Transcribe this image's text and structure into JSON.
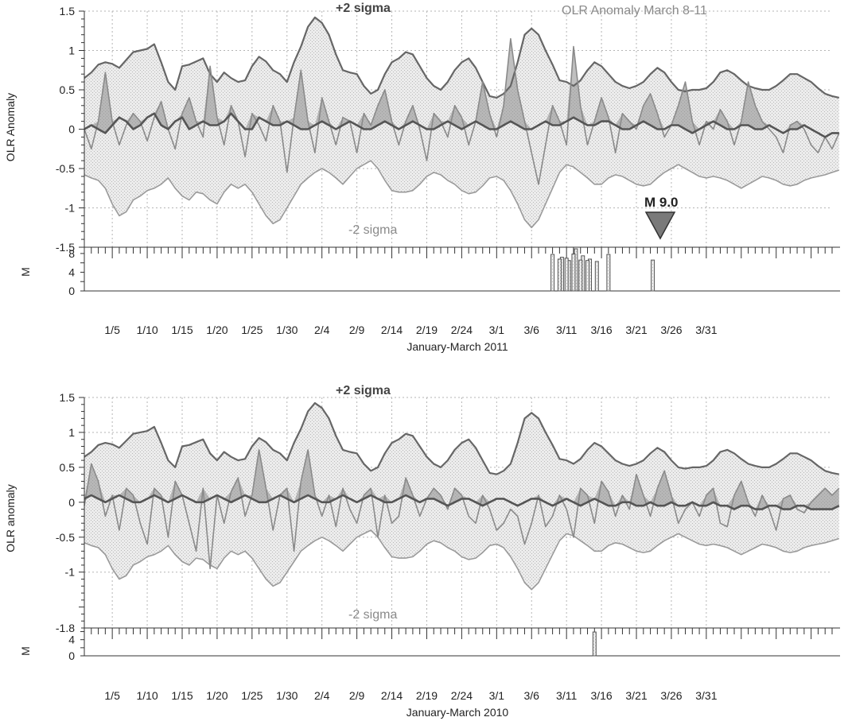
{
  "chart_data": [
    {
      "type": "line",
      "xlabel": "January-March 2011",
      "ylabel": "OLR Anomaly",
      "ylim": [
        -1.5,
        1.5
      ],
      "y_ticks": [
        "1.5",
        "1",
        "0.5",
        "0",
        "-0.5",
        "-1",
        "-1.5"
      ],
      "x_tick_labels": [
        "1/5",
        "1/10",
        "1/15",
        "1/20",
        "1/25",
        "1/30",
        "2/4",
        "2/9",
        "2/14",
        "2/19",
        "2/24",
        "3/1",
        "3/6",
        "3/11",
        "3/16",
        "3/21",
        "3/26",
        "3/31"
      ],
      "annotations": {
        "sigma_high": "+2 sigma",
        "sigma_low": "-2 sigma",
        "note": "OLR Anomaly March 8-11",
        "quake": "M 9.0"
      },
      "quake_day": 70,
      "series": [
        {
          "values": [
            0.65,
            0.72,
            0.82,
            0.85,
            0.83,
            0.78,
            0.88,
            0.98,
            1.0,
            1.02,
            1.08,
            0.85,
            0.6,
            0.5,
            0.8,
            0.82,
            0.86,
            0.9,
            0.7,
            0.6,
            0.72,
            0.65,
            0.6,
            0.62,
            0.8,
            0.92,
            0.86,
            0.75,
            0.7,
            0.6,
            0.85,
            1.05,
            1.3,
            1.42,
            1.35,
            1.2,
            0.95,
            0.75,
            0.72,
            0.7,
            0.55,
            0.45,
            0.5,
            0.7,
            0.85,
            0.9,
            0.98,
            0.95,
            0.8,
            0.65,
            0.55,
            0.5,
            0.6,
            0.75,
            0.85,
            0.9,
            0.78,
            0.6,
            0.42,
            0.4,
            0.45,
            0.55,
            0.85,
            1.2,
            1.28,
            1.2,
            1.0,
            0.82,
            0.62,
            0.6,
            0.55,
            0.62,
            0.75,
            0.85,
            0.8,
            0.7,
            0.6,
            0.55,
            0.52,
            0.55,
            0.6,
            0.7,
            0.78,
            0.72,
            0.6,
            0.5,
            0.48,
            0.5,
            0.5,
            0.52,
            0.6,
            0.72,
            0.75,
            0.7,
            0.62,
            0.55,
            0.52,
            0.5,
            0.5,
            0.55,
            0.62,
            0.7,
            0.7,
            0.65,
            0.6,
            0.52,
            0.45,
            0.42,
            0.4
          ]
        },
        {
          "values": [
            -0.58,
            -0.62,
            -0.65,
            -0.75,
            -0.95,
            -1.1,
            -1.05,
            -0.9,
            -0.85,
            -0.78,
            -0.75,
            -0.7,
            -0.62,
            -0.75,
            -0.85,
            -0.9,
            -0.8,
            -0.82,
            -0.9,
            -0.95,
            -0.8,
            -0.7,
            -0.75,
            -0.7,
            -0.8,
            -0.95,
            -1.1,
            -1.2,
            -1.15,
            -1.0,
            -0.85,
            -0.7,
            -0.62,
            -0.55,
            -0.5,
            -0.55,
            -0.62,
            -0.7,
            -0.6,
            -0.5,
            -0.45,
            -0.4,
            -0.5,
            -0.65,
            -0.78,
            -0.8,
            -0.8,
            -0.78,
            -0.7,
            -0.6,
            -0.55,
            -0.58,
            -0.65,
            -0.7,
            -0.78,
            -0.82,
            -0.8,
            -0.72,
            -0.62,
            -0.6,
            -0.65,
            -0.78,
            -0.95,
            -1.15,
            -1.25,
            -1.15,
            -0.95,
            -0.75,
            -0.55,
            -0.45,
            -0.48,
            -0.55,
            -0.62,
            -0.7,
            -0.7,
            -0.62,
            -0.58,
            -0.6,
            -0.65,
            -0.7,
            -0.72,
            -0.7,
            -0.62,
            -0.55,
            -0.5,
            -0.45,
            -0.5,
            -0.55,
            -0.6,
            -0.62,
            -0.6,
            -0.62,
            -0.65,
            -0.7,
            -0.75,
            -0.7,
            -0.65,
            -0.6,
            -0.62,
            -0.65,
            -0.7,
            -0.72,
            -0.7,
            -0.65,
            -0.62,
            -0.6,
            -0.58,
            -0.55,
            -0.52
          ]
        },
        {
          "values": [
            0.0,
            0.05,
            0.0,
            -0.05,
            0.05,
            0.15,
            0.1,
            0.0,
            0.05,
            0.15,
            0.2,
            0.05,
            0.0,
            0.1,
            0.15,
            0.0,
            0.05,
            0.1,
            0.05,
            0.05,
            0.1,
            0.2,
            0.1,
            0.0,
            0.0,
            0.15,
            0.1,
            0.05,
            0.05,
            0.1,
            0.05,
            0.0,
            0.0,
            0.05,
            0.1,
            0.05,
            0.0,
            0.05,
            0.1,
            0.05,
            0.0,
            0.0,
            0.05,
            0.1,
            0.05,
            0.0,
            0.05,
            0.1,
            0.05,
            0.0,
            0.0,
            0.05,
            0.1,
            0.05,
            0.0,
            0.05,
            0.1,
            0.05,
            0.0,
            0.0,
            0.05,
            0.1,
            0.05,
            0.0,
            0.0,
            0.05,
            0.1,
            0.05,
            0.05,
            0.1,
            0.15,
            0.1,
            0.05,
            0.05,
            0.1,
            0.1,
            0.05,
            0.0,
            0.0,
            0.05,
            0.1,
            0.05,
            0.0,
            0.0,
            0.05,
            0.05,
            0.0,
            -0.05,
            0.0,
            0.05,
            0.1,
            0.05,
            0.0,
            0.0,
            0.05,
            0.05,
            0.0,
            0.0,
            0.05,
            0.0,
            -0.05,
            0.0,
            0.0,
            0.05,
            0.0,
            -0.05,
            -0.1,
            -0.05,
            -0.05
          ]
        },
        {
          "values": [
            0.0,
            -0.25,
            0.1,
            0.72,
            0.1,
            -0.2,
            0.05,
            0.2,
            0.1,
            -0.15,
            0.15,
            0.35,
            0.0,
            -0.25,
            0.2,
            0.4,
            0.1,
            -0.1,
            0.8,
            0.15,
            -0.2,
            0.3,
            0.1,
            -0.35,
            0.2,
            0.05,
            -0.15,
            0.3,
            0.1,
            -0.55,
            0.15,
            0.75,
            0.1,
            -0.3,
            0.4,
            0.1,
            -0.2,
            0.15,
            0.1,
            -0.3,
            0.2,
            0.05,
            0.3,
            0.5,
            0.1,
            -0.2,
            0.1,
            0.3,
            0.0,
            -0.4,
            0.2,
            0.1,
            -0.1,
            0.3,
            0.15,
            -0.2,
            0.1,
            0.6,
            0.2,
            -0.1,
            0.3,
            1.15,
            0.5,
            0.1,
            -0.3,
            -0.7,
            -0.2,
            0.3,
            0.1,
            -0.2,
            1.05,
            0.3,
            -0.2,
            0.1,
            0.4,
            0.15,
            -0.3,
            0.2,
            0.1,
            0.0,
            0.3,
            0.45,
            0.2,
            -0.1,
            0.05,
            0.3,
            0.6,
            0.1,
            -0.2,
            0.1,
            0.0,
            0.25,
            0.1,
            -0.2,
            0.1,
            0.6,
            0.3,
            0.1,
            0.0,
            -0.1,
            -0.3,
            0.05,
            0.1,
            0.0,
            -0.2,
            -0.3,
            -0.1,
            -0.25,
            -0.05
          ]
        }
      ]
    },
    {
      "type": "bar",
      "ylabel": "M",
      "y_ticks": [
        "8",
        "4",
        "0"
      ],
      "ylim": [
        0,
        9
      ],
      "x": [
        67,
        68,
        68,
        69,
        69,
        70,
        70,
        71,
        71,
        72,
        72,
        73,
        75,
        81
      ],
      "values": [
        7.8,
        7.2,
        6.8,
        6.5,
        7.0,
        9.0,
        7.9,
        7.5,
        6.6,
        6.8,
        6.5,
        6.3,
        7.8,
        6.6
      ]
    },
    {
      "type": "line",
      "xlabel": "January-March 2010",
      "ylabel": "OLR anomaly",
      "ylim": [
        -1.8,
        1.5
      ],
      "y_ticks": [
        "1.5",
        "1",
        "0.5",
        "0",
        "-0.5",
        "-1",
        "-1.8"
      ],
      "x_tick_labels": [
        "1/5",
        "1/10",
        "1/15",
        "1/20",
        "1/25",
        "1/30",
        "2/4",
        "2/9",
        "2/14",
        "2/19",
        "2/24",
        "3/1",
        "3/6",
        "3/11",
        "3/16",
        "3/21",
        "3/26",
        "3/31"
      ],
      "annotations": {
        "sigma_high": "+2 sigma",
        "sigma_low": "-2 sigma"
      },
      "series": [
        {
          "values": [
            0.65,
            0.72,
            0.82,
            0.85,
            0.83,
            0.78,
            0.88,
            0.98,
            1.0,
            1.02,
            1.08,
            0.85,
            0.6,
            0.5,
            0.8,
            0.82,
            0.86,
            0.9,
            0.7,
            0.6,
            0.72,
            0.65,
            0.6,
            0.62,
            0.8,
            0.92,
            0.86,
            0.75,
            0.7,
            0.6,
            0.85,
            1.05,
            1.3,
            1.42,
            1.35,
            1.2,
            0.95,
            0.75,
            0.72,
            0.7,
            0.55,
            0.45,
            0.5,
            0.7,
            0.85,
            0.9,
            0.98,
            0.95,
            0.8,
            0.65,
            0.55,
            0.5,
            0.6,
            0.75,
            0.85,
            0.9,
            0.78,
            0.6,
            0.42,
            0.4,
            0.45,
            0.55,
            0.85,
            1.2,
            1.28,
            1.2,
            1.0,
            0.82,
            0.62,
            0.6,
            0.55,
            0.62,
            0.75,
            0.85,
            0.8,
            0.7,
            0.6,
            0.55,
            0.52,
            0.55,
            0.6,
            0.7,
            0.78,
            0.72,
            0.6,
            0.5,
            0.48,
            0.5,
            0.5,
            0.52,
            0.6,
            0.72,
            0.75,
            0.7,
            0.62,
            0.55,
            0.52,
            0.5,
            0.5,
            0.55,
            0.62,
            0.7,
            0.7,
            0.65,
            0.6,
            0.52,
            0.45,
            0.42,
            0.4
          ]
        },
        {
          "values": [
            -0.58,
            -0.62,
            -0.65,
            -0.75,
            -0.95,
            -1.1,
            -1.05,
            -0.9,
            -0.85,
            -0.78,
            -0.75,
            -0.7,
            -0.62,
            -0.75,
            -0.85,
            -0.9,
            -0.8,
            -0.82,
            -0.9,
            -0.95,
            -0.8,
            -0.7,
            -0.75,
            -0.7,
            -0.8,
            -0.95,
            -1.1,
            -1.2,
            -1.15,
            -1.0,
            -0.85,
            -0.7,
            -0.62,
            -0.55,
            -0.5,
            -0.55,
            -0.62,
            -0.7,
            -0.6,
            -0.5,
            -0.45,
            -0.4,
            -0.5,
            -0.65,
            -0.78,
            -0.8,
            -0.8,
            -0.78,
            -0.7,
            -0.6,
            -0.55,
            -0.58,
            -0.65,
            -0.7,
            -0.78,
            -0.82,
            -0.8,
            -0.72,
            -0.62,
            -0.6,
            -0.65,
            -0.78,
            -0.95,
            -1.15,
            -1.25,
            -1.15,
            -0.95,
            -0.75,
            -0.55,
            -0.45,
            -0.48,
            -0.55,
            -0.62,
            -0.7,
            -0.7,
            -0.62,
            -0.58,
            -0.6,
            -0.65,
            -0.7,
            -0.72,
            -0.7,
            -0.62,
            -0.55,
            -0.5,
            -0.45,
            -0.5,
            -0.55,
            -0.6,
            -0.62,
            -0.6,
            -0.62,
            -0.65,
            -0.7,
            -0.75,
            -0.7,
            -0.65,
            -0.6,
            -0.62,
            -0.65,
            -0.7,
            -0.72,
            -0.7,
            -0.65,
            -0.62,
            -0.6,
            -0.58,
            -0.55,
            -0.52
          ]
        },
        {
          "values": [
            0.05,
            0.1,
            0.05,
            0.0,
            0.05,
            0.1,
            0.05,
            0.0,
            0.0,
            0.05,
            0.1,
            0.05,
            0.0,
            0.05,
            0.1,
            0.05,
            0.0,
            0.0,
            0.05,
            0.1,
            0.05,
            0.0,
            0.05,
            0.1,
            0.05,
            0.0,
            0.0,
            0.05,
            0.1,
            0.05,
            0.0,
            0.05,
            0.1,
            0.05,
            0.0,
            0.0,
            0.05,
            0.1,
            0.05,
            0.0,
            0.05,
            0.1,
            0.05,
            0.0,
            0.0,
            0.05,
            0.1,
            0.05,
            0.0,
            0.05,
            0.05,
            0.0,
            -0.05,
            0.0,
            0.05,
            0.05,
            0.0,
            -0.05,
            0.0,
            0.05,
            0.05,
            0.0,
            -0.05,
            0.0,
            0.05,
            0.05,
            0.0,
            -0.05,
            0.0,
            0.05,
            0.0,
            -0.05,
            0.0,
            0.05,
            0.0,
            -0.05,
            -0.05,
            0.0,
            0.0,
            -0.05,
            -0.05,
            0.0,
            -0.05,
            -0.05,
            0.0,
            -0.05,
            -0.05,
            0.0,
            -0.05,
            -0.05,
            0.0,
            -0.05,
            -0.05,
            -0.1,
            -0.05,
            -0.05,
            -0.1,
            -0.1,
            -0.05,
            -0.05,
            -0.1,
            -0.1,
            -0.05,
            -0.05,
            -0.1,
            -0.1,
            -0.1,
            -0.1,
            -0.05
          ]
        },
        {
          "values": [
            -0.05,
            0.55,
            0.3,
            -0.2,
            0.1,
            -0.4,
            0.2,
            0.1,
            -0.3,
            -0.6,
            0.2,
            0.1,
            -0.5,
            0.3,
            0.1,
            -0.3,
            -0.7,
            0.2,
            -0.95,
            0.1,
            -0.3,
            0.15,
            0.35,
            -0.2,
            0.1,
            0.75,
            0.2,
            -0.4,
            0.1,
            0.2,
            -0.7,
            0.3,
            0.75,
            0.1,
            -0.2,
            0.1,
            -0.35,
            0.2,
            -0.1,
            -0.3,
            0.1,
            0.2,
            -0.5,
            0.1,
            -0.3,
            -0.2,
            0.35,
            0.1,
            -0.2,
            0.05,
            0.2,
            0.1,
            -0.1,
            0.2,
            0.1,
            -0.2,
            -0.3,
            0.1,
            -0.1,
            -0.4,
            -0.3,
            -0.1,
            -0.2,
            -0.6,
            -0.3,
            0.1,
            -0.35,
            -0.2,
            0.1,
            -0.1,
            -0.5,
            0.2,
            0.1,
            -0.3,
            0.3,
            0.15,
            -0.2,
            0.1,
            -0.1,
            0.4,
            0.1,
            -0.2,
            0.2,
            0.45,
            0.1,
            -0.3,
            -0.1,
            0.0,
            -0.2,
            0.1,
            0.2,
            -0.3,
            -0.35,
            0.1,
            0.3,
            0.0,
            -0.2,
            0.1,
            -0.1,
            -0.4,
            0.05,
            0.1,
            -0.1,
            -0.15,
            0.0,
            0.1,
            0.2,
            0.1,
            0.2
          ]
        }
      ]
    },
    {
      "type": "bar",
      "ylabel": "M",
      "y_ticks": [
        "4",
        "0"
      ],
      "ylim": [
        0,
        6.5
      ],
      "x": [
        73
      ],
      "values": [
        5.9
      ]
    }
  ]
}
